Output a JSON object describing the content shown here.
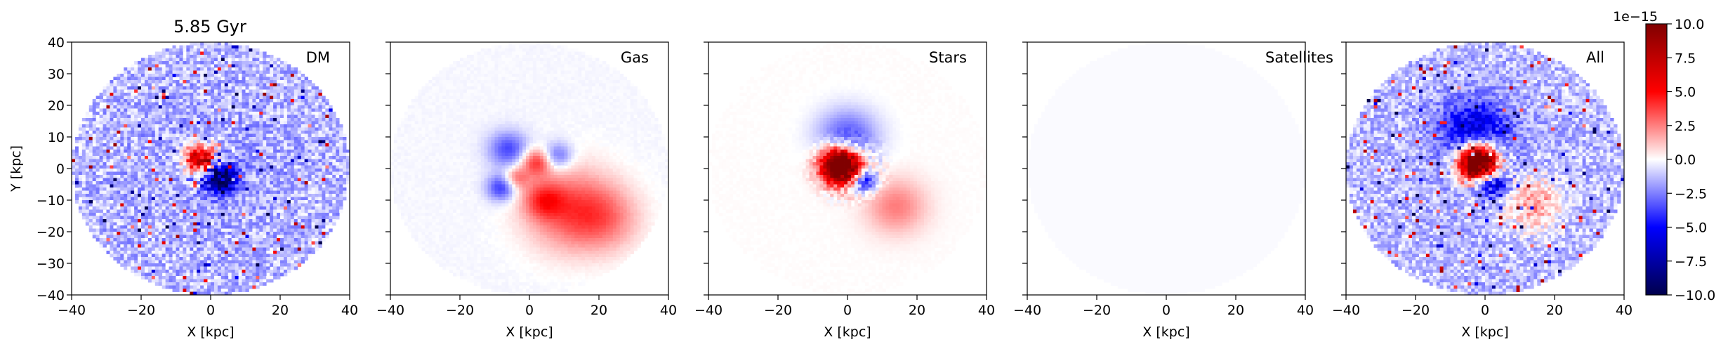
{
  "figure": {
    "title": "5.85 Gyr"
  },
  "chart_data": [
    {
      "type": "heatmap",
      "panel_label": "DM",
      "xlabel": "X [kpc]",
      "ylabel": "Y [kpc]",
      "xlim": [
        -40,
        40
      ],
      "ylim": [
        -40,
        40
      ],
      "xticks": [
        -40,
        -20,
        0,
        20,
        40
      ],
      "yticks": [
        -40,
        -30,
        -20,
        -10,
        0,
        10,
        20,
        30,
        40
      ],
      "xtick_labels": [
        "−40",
        "−20",
        "0",
        "20",
        "40"
      ],
      "ytick_labels": [
        "−40",
        "−30",
        "−20",
        "−10",
        "0",
        "10",
        "20",
        "30",
        "40"
      ],
      "data_region": "disk, radius 40 kpc",
      "pattern": "low-level blue background (~-2.5e-15) with strong blue/red noise; dense dipole near center (red upper-left, blue lower-right)"
    },
    {
      "type": "heatmap",
      "panel_label": "Gas",
      "xlabel": "X [kpc]",
      "ylabel": "",
      "xlim": [
        -40,
        40
      ],
      "ylim": [
        -40,
        40
      ],
      "xticks": [
        -40,
        -20,
        0,
        20,
        40
      ],
      "yticks": [
        -40,
        -30,
        -20,
        -10,
        0,
        10,
        20,
        30,
        40
      ],
      "xtick_labels": [
        "−40",
        "−20",
        "0",
        "20",
        "40"
      ],
      "ytick_labels": [],
      "pattern": "near-zero field; blue lobes around center, red tail extending to lower-right (~x 0..30, y -10..-20)"
    },
    {
      "type": "heatmap",
      "panel_label": "Stars",
      "xlabel": "X [kpc]",
      "ylabel": "",
      "xlim": [
        -40,
        40
      ],
      "ylim": [
        -40,
        40
      ],
      "xticks": [
        -40,
        -20,
        0,
        20,
        40
      ],
      "yticks": [
        -40,
        -30,
        -20,
        -10,
        0,
        10,
        20,
        30,
        40
      ],
      "xtick_labels": [
        "−40",
        "−20",
        "0",
        "20",
        "40"
      ],
      "ytick_labels": [],
      "pattern": "saturated red core (~+10e-15) near (-2, 1) with dark-blue pixels to the lower-right; blue ring above, faint red to lower-right"
    },
    {
      "type": "heatmap",
      "panel_label": "Satellites",
      "xlabel": "X [kpc]",
      "ylabel": "",
      "xlim": [
        -40,
        40
      ],
      "ylim": [
        -40,
        40
      ],
      "xticks": [
        -40,
        -20,
        0,
        20,
        40
      ],
      "yticks": [
        -40,
        -30,
        -20,
        -10,
        0,
        10,
        20,
        30,
        40
      ],
      "xtick_labels": [
        "−40",
        "−20",
        "0",
        "20",
        "40"
      ],
      "ytick_labels": [],
      "pattern": "essentially zero everywhere (very faint uniform tint)"
    },
    {
      "type": "heatmap",
      "panel_label": "All",
      "xlabel": "X [kpc]",
      "ylabel": "",
      "xlim": [
        -40,
        40
      ],
      "ylim": [
        -40,
        40
      ],
      "xticks": [
        -40,
        -20,
        0,
        20,
        40
      ],
      "yticks": [
        -40,
        -30,
        -20,
        -10,
        0,
        10,
        20,
        30,
        40
      ],
      "xtick_labels": [
        "−40",
        "−20",
        "0",
        "20",
        "40"
      ],
      "ytick_labels": [],
      "data_region": "disk, radius 40 kpc",
      "pattern": "sum of components: noisy blue disk, saturated red core near center, blue arc above, red patch to lower-right"
    }
  ],
  "colorbar": {
    "cmap": "seismic",
    "range": [
      -10.0,
      10.0
    ],
    "ticks": [
      10.0,
      7.5,
      5.0,
      2.5,
      0.0,
      -2.5,
      -5.0,
      -7.5,
      -10.0
    ],
    "tick_labels": [
      "10.0",
      "7.5",
      "5.0",
      "2.5",
      "0.0",
      "−2.5",
      "−5.0",
      "−7.5",
      "−10.0"
    ],
    "scale_label": "1e−15"
  }
}
